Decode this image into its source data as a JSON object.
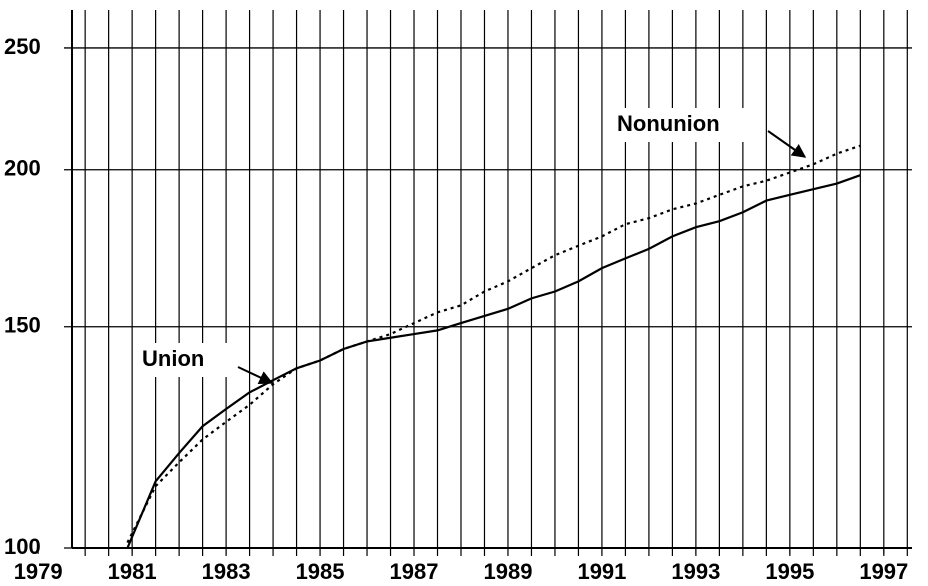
{
  "chart_data": {
    "type": "line",
    "annotations": [
      "Union",
      "Nonunion"
    ],
    "x": [
      1980.9,
      1981.5,
      1982,
      1982.5,
      1983,
      1983.5,
      1984,
      1984.5,
      1985,
      1985.5,
      1986,
      1986.5,
      1987,
      1987.5,
      1988,
      1988.5,
      1989,
      1989.5,
      1990,
      1990.5,
      1991,
      1991.5,
      1992,
      1992.5,
      1993,
      1993.5,
      1994,
      1994.5,
      1995,
      1995.5,
      1996,
      1996.5
    ],
    "series": [
      {
        "name": "Union",
        "color": "#000000",
        "style": "solid",
        "values": [
          100,
          113,
          119,
          125,
          129,
          133,
          136,
          139,
          141,
          144,
          146,
          147,
          148,
          149,
          151,
          153,
          155,
          158,
          160,
          163,
          167,
          170,
          173,
          177,
          180,
          182,
          185,
          189,
          191,
          193,
          195,
          198
        ]
      },
      {
        "name": "Nonunion",
        "color": "#000000",
        "style": "dotted",
        "values": [
          101,
          112,
          117,
          122,
          126,
          130,
          135,
          139,
          141,
          144,
          146,
          148,
          151,
          154,
          156,
          160,
          163,
          167,
          171,
          174,
          177,
          181,
          183,
          186,
          188,
          191,
          194,
          196,
          199,
          202,
          206,
          209
        ]
      }
    ],
    "xlim": [
      1979.72,
      1997.6
    ],
    "xticks": [
      1979,
      1981,
      1983,
      1985,
      1987,
      1989,
      1991,
      1993,
      1995,
      1997
    ],
    "x_grid_step": 0.5,
    "ylim": [
      100,
      268
    ],
    "yticks": [
      100,
      150,
      200,
      250
    ],
    "log_y": true,
    "grid": true
  }
}
